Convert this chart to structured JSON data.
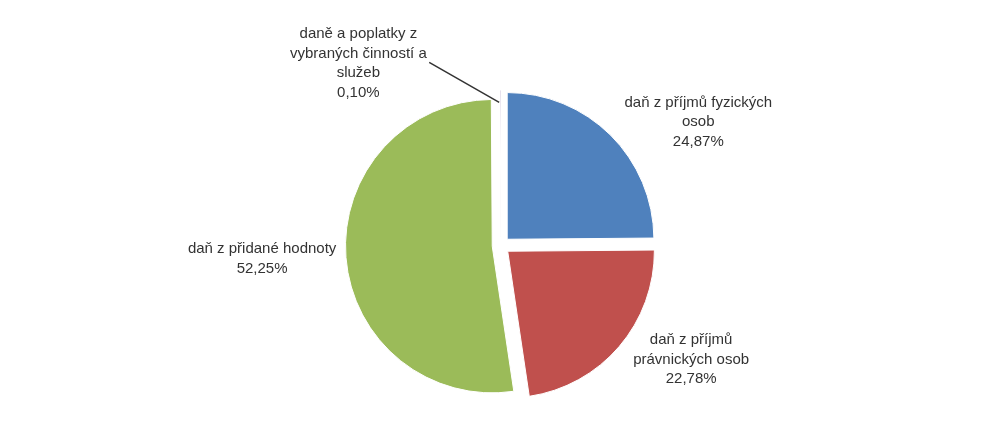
{
  "chart_data": {
    "type": "pie",
    "categories": [
      "daň z příjmů fyzických osob",
      "daň z příjmů právnických osob",
      "daň z přidané hodnoty",
      "daně a poplatky z vybraných činností a služeb"
    ],
    "values": [
      24.87,
      22.78,
      52.25,
      0.1
    ],
    "colors": [
      "#4f81bd",
      "#c0504d",
      "#9bbb59",
      "#8064a2"
    ],
    "value_labels": [
      "24,87%",
      "22,78%",
      "52,25%",
      "0,10%"
    ],
    "legend": false
  }
}
